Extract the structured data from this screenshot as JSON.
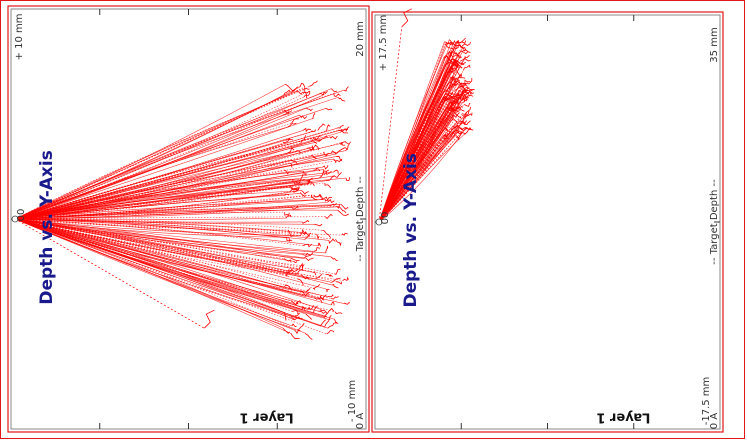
{
  "colors": {
    "frame": "#e01818",
    "trace": "#ff0000",
    "title": "#1a1a8c",
    "axis": "#333333"
  },
  "chart_data": [
    {
      "type": "line",
      "orientation": "rotated-90-clockwise",
      "title": "Depth vs. Y-Axis",
      "layer_label": "Layer 1",
      "depth_axis": {
        "ticks": [
          "0 A",
          "-- Target Depth --",
          "20 mm"
        ]
      },
      "lateral_axis": {
        "ticks": [
          "+ 10 mm",
          "00",
          "- 10 mm"
        ],
        "range": [
          -10,
          10
        ]
      },
      "traces": {
        "count": 180,
        "origin": [
          0,
          0
        ],
        "spread": [
          -6.5,
          5.5
        ],
        "tip_depth": [
          17,
          21
        ],
        "outlier": [
          5.2,
          12
        ]
      },
      "grid": false
    },
    {
      "type": "line",
      "orientation": "rotated-90-clockwise",
      "title": "Depth vs. Y-Axis",
      "layer_label": "Layer 1",
      "depth_axis": {
        "ticks": [
          "0 A",
          "-- Target Depth --",
          "35 mm"
        ]
      },
      "lateral_axis": {
        "ticks": [
          "+ 17.5 mm",
          "00",
          "-17.5 mm"
        ],
        "range": [
          -17.5,
          17.5
        ]
      },
      "traces": {
        "count": 140,
        "origin": [
          0,
          0
        ],
        "spread": [
          -15.5,
          -7
        ],
        "tip_depth": [
          7,
          9.5
        ],
        "outlier": [
          -16.5,
          2.5
        ]
      },
      "grid": false
    }
  ]
}
